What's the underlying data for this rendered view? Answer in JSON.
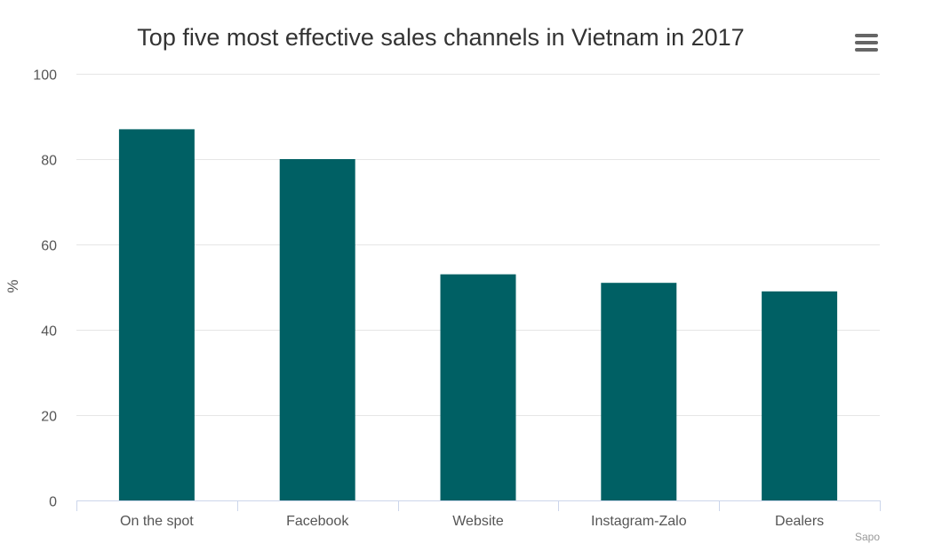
{
  "chart_data": {
    "type": "bar",
    "title": "Top five most effective sales channels in Vietnam in 2017",
    "categories": [
      "On the spot",
      "Facebook",
      "Website",
      "Instagram-Zalo",
      "Dealers"
    ],
    "values": [
      87,
      80,
      53,
      51,
      49
    ],
    "ylabel": "%",
    "xlabel": "",
    "ylim": [
      0,
      100
    ],
    "yticks": [
      0,
      20,
      40,
      60,
      80,
      100
    ],
    "bar_color": "#006064",
    "grid": true,
    "legend": "none",
    "credit": "Sapo"
  },
  "menu": {
    "icon": "hamburger-menu-icon"
  }
}
